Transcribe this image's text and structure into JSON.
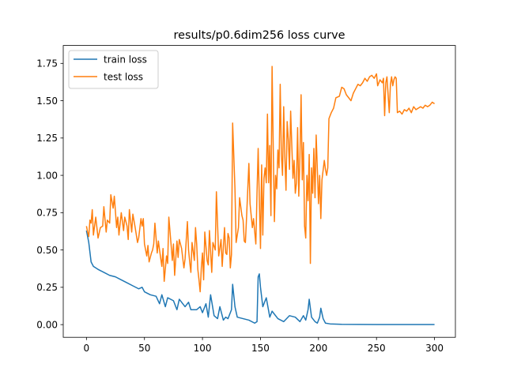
{
  "chart_data": {
    "type": "line",
    "title": "results/p0.6dim256 loss curve",
    "xlabel": "",
    "ylabel": "",
    "xlim": [
      -20,
      318
    ],
    "ylim": [
      -0.085,
      1.87
    ],
    "x_ticks": [
      0,
      50,
      100,
      150,
      200,
      250,
      300
    ],
    "y_ticks": [
      0.0,
      0.25,
      0.5,
      0.75,
      1.0,
      1.25,
      1.5,
      1.75
    ],
    "x_tick_labels": [
      "0",
      "50",
      "100",
      "150",
      "200",
      "250",
      "300"
    ],
    "y_tick_labels": [
      "0.00",
      "0.25",
      "0.50",
      "0.75",
      "1.00",
      "1.25",
      "1.50",
      "1.75"
    ],
    "grid": false,
    "legend": {
      "position": "top-left",
      "entries": [
        "train loss",
        "test loss"
      ]
    },
    "series": [
      {
        "name": "train loss",
        "color": "#1f77b4",
        "points": [
          [
            0,
            0.63
          ],
          [
            2,
            0.55
          ],
          [
            4,
            0.42
          ],
          [
            6,
            0.39
          ],
          [
            10,
            0.37
          ],
          [
            15,
            0.35
          ],
          [
            20,
            0.33
          ],
          [
            25,
            0.32
          ],
          [
            30,
            0.3
          ],
          [
            35,
            0.28
          ],
          [
            40,
            0.26
          ],
          [
            45,
            0.24
          ],
          [
            48,
            0.25
          ],
          [
            50,
            0.22
          ],
          [
            55,
            0.2
          ],
          [
            60,
            0.19
          ],
          [
            63,
            0.14
          ],
          [
            65,
            0.2
          ],
          [
            68,
            0.12
          ],
          [
            70,
            0.18
          ],
          [
            75,
            0.16
          ],
          [
            78,
            0.1
          ],
          [
            80,
            0.17
          ],
          [
            85,
            0.12
          ],
          [
            88,
            0.15
          ],
          [
            90,
            0.1
          ],
          [
            95,
            0.1
          ],
          [
            98,
            0.12
          ],
          [
            100,
            0.08
          ],
          [
            103,
            0.14
          ],
          [
            105,
            0.05
          ],
          [
            107,
            0.2
          ],
          [
            110,
            0.06
          ],
          [
            113,
            0.04
          ],
          [
            115,
            0.12
          ],
          [
            118,
            0.03
          ],
          [
            120,
            0.05
          ],
          [
            122,
            0.04
          ],
          [
            125,
            0.1
          ],
          [
            126,
            0.27
          ],
          [
            128,
            0.12
          ],
          [
            130,
            0.05
          ],
          [
            135,
            0.04
          ],
          [
            140,
            0.03
          ],
          [
            145,
            0.01
          ],
          [
            147,
            0.02
          ],
          [
            148,
            0.32
          ],
          [
            149,
            0.34
          ],
          [
            150,
            0.25
          ],
          [
            152,
            0.12
          ],
          [
            155,
            0.18
          ],
          [
            158,
            0.05
          ],
          [
            160,
            0.09
          ],
          [
            165,
            0.04
          ],
          [
            170,
            0.02
          ],
          [
            175,
            0.06
          ],
          [
            180,
            0.05
          ],
          [
            184,
            0.02
          ],
          [
            187,
            0.06
          ],
          [
            189,
            0.03
          ],
          [
            191,
            0.1
          ],
          [
            192,
            0.17
          ],
          [
            194,
            0.05
          ],
          [
            197,
            0.02
          ],
          [
            199,
            0.01
          ],
          [
            201,
            0.05
          ],
          [
            202,
            0.11
          ],
          [
            204,
            0.04
          ],
          [
            206,
            0.01
          ],
          [
            210,
            0.005
          ],
          [
            220,
            0.002
          ],
          [
            250,
            0.001
          ],
          [
            300,
            0.001
          ]
        ]
      },
      {
        "name": "test loss",
        "color": "#ff7f0e",
        "points": [
          [
            0,
            0.66
          ],
          [
            1,
            0.62
          ],
          [
            2,
            0.59
          ],
          [
            3,
            0.7
          ],
          [
            4,
            0.68
          ],
          [
            5,
            0.77
          ],
          [
            6,
            0.6
          ],
          [
            8,
            0.72
          ],
          [
            10,
            0.58
          ],
          [
            12,
            0.65
          ],
          [
            14,
            0.66
          ],
          [
            15,
            0.79
          ],
          [
            17,
            0.62
          ],
          [
            18,
            0.7
          ],
          [
            20,
            0.68
          ],
          [
            21,
            0.87
          ],
          [
            23,
            0.78
          ],
          [
            24,
            0.86
          ],
          [
            26,
            0.65
          ],
          [
            27,
            0.72
          ],
          [
            28,
            0.6
          ],
          [
            30,
            0.75
          ],
          [
            32,
            0.63
          ],
          [
            33,
            0.72
          ],
          [
            35,
            0.66
          ],
          [
            36,
            0.57
          ],
          [
            37,
            0.77
          ],
          [
            39,
            0.62
          ],
          [
            40,
            0.74
          ],
          [
            42,
            0.65
          ],
          [
            44,
            0.55
          ],
          [
            45,
            0.58
          ],
          [
            47,
            0.71
          ],
          [
            48,
            0.66
          ],
          [
            49,
            0.71
          ],
          [
            50,
            0.54
          ],
          [
            52,
            0.46
          ],
          [
            53,
            0.53
          ],
          [
            54,
            0.42
          ],
          [
            56,
            0.48
          ],
          [
            57,
            0.5
          ],
          [
            58,
            0.54
          ],
          [
            59,
            0.68
          ],
          [
            61,
            0.48
          ],
          [
            62,
            0.56
          ],
          [
            63,
            0.5
          ],
          [
            65,
            0.39
          ],
          [
            66,
            0.51
          ],
          [
            67,
            0.29
          ],
          [
            69,
            0.46
          ],
          [
            70,
            0.41
          ],
          [
            71,
            0.72
          ],
          [
            73,
            0.53
          ],
          [
            74,
            0.43
          ],
          [
            75,
            0.54
          ],
          [
            76,
            0.33
          ],
          [
            78,
            0.56
          ],
          [
            79,
            0.45
          ],
          [
            80,
            0.57
          ],
          [
            82,
            0.51
          ],
          [
            84,
            0.38
          ],
          [
            85,
            0.44
          ],
          [
            87,
            0.69
          ],
          [
            88,
            0.5
          ],
          [
            89,
            0.42
          ],
          [
            90,
            0.35
          ],
          [
            91,
            0.55
          ],
          [
            93,
            0.43
          ],
          [
            94,
            0.65
          ],
          [
            95,
            0.54
          ],
          [
            96,
            0.37
          ],
          [
            97,
            0.3
          ],
          [
            98,
            0.22
          ],
          [
            99,
            0.38
          ],
          [
            100,
            0.48
          ],
          [
            101,
            0.3
          ],
          [
            102,
            0.62
          ],
          [
            104,
            0.43
          ],
          [
            105,
            0.4
          ],
          [
            106,
            0.63
          ],
          [
            108,
            0.35
          ],
          [
            109,
            0.55
          ],
          [
            111,
            0.5
          ],
          [
            112,
            0.89
          ],
          [
            114,
            0.46
          ],
          [
            116,
            0.57
          ],
          [
            117,
            0.39
          ],
          [
            119,
            0.65
          ],
          [
            120,
            0.48
          ],
          [
            121,
            0.47
          ],
          [
            122,
            0.61
          ],
          [
            123,
            0.58
          ],
          [
            124,
            0.38
          ],
          [
            125,
            0.47
          ],
          [
            126,
            1.35
          ],
          [
            128,
            0.91
          ],
          [
            129,
            0.55
          ],
          [
            131,
            0.65
          ],
          [
            132,
            0.85
          ],
          [
            134,
            0.73
          ],
          [
            135,
            0.7
          ],
          [
            136,
            0.56
          ],
          [
            137,
            0.55
          ],
          [
            138,
            0.72
          ],
          [
            140,
            1.08
          ],
          [
            141,
            0.81
          ],
          [
            143,
            0.65
          ],
          [
            144,
            0.71
          ],
          [
            146,
            0.54
          ],
          [
            147,
            0.88
          ],
          [
            148,
            1.18
          ],
          [
            149,
            0.84
          ],
          [
            150,
            0.51
          ],
          [
            151,
            1.07
          ],
          [
            152,
            0.6
          ],
          [
            153,
            0.98
          ],
          [
            154,
            1.05
          ],
          [
            155,
            0.95
          ],
          [
            156,
            1.41
          ],
          [
            157,
            0.95
          ],
          [
            158,
            1.2
          ],
          [
            159,
            0.73
          ],
          [
            160,
            1.73
          ],
          [
            161,
            1.18
          ],
          [
            162,
            0.69
          ],
          [
            163,
            1.0
          ],
          [
            164,
            0.91
          ],
          [
            165,
            1.17
          ],
          [
            166,
            1.05
          ],
          [
            167,
            1.61
          ],
          [
            168,
            1.14
          ],
          [
            169,
            1.0
          ],
          [
            170,
            1.46
          ],
          [
            171,
            1.12
          ],
          [
            172,
            0.9
          ],
          [
            173,
            1.36
          ],
          [
            174,
            1.24
          ],
          [
            175,
            1.04
          ],
          [
            176,
            1.43
          ],
          [
            177,
            1.2
          ],
          [
            178,
            0.98
          ],
          [
            179,
            1.1
          ],
          [
            180,
            0.88
          ],
          [
            181,
            0.95
          ],
          [
            182,
            1.32
          ],
          [
            183,
            0.86
          ],
          [
            184,
            1.12
          ],
          [
            185,
            1.54
          ],
          [
            186,
            0.97
          ],
          [
            187,
            1.22
          ],
          [
            188,
            0.66
          ],
          [
            189,
            0.58
          ],
          [
            190,
            1.0
          ],
          [
            191,
            0.83
          ],
          [
            192,
            1.14
          ],
          [
            193,
            0.41
          ],
          [
            194,
            1.05
          ],
          [
            195,
            0.88
          ],
          [
            196,
            1.18
          ],
          [
            197,
            0.85
          ],
          [
            198,
            1.27
          ],
          [
            199,
            1.04
          ],
          [
            200,
            0.81
          ],
          [
            201,
            1.0
          ],
          [
            202,
            0.71
          ],
          [
            203,
            0.97
          ],
          [
            205,
            1.1
          ],
          [
            206,
            1.04
          ],
          [
            207,
            1.0
          ],
          [
            208,
            1.05
          ],
          [
            209,
            1.38
          ],
          [
            211,
            1.42
          ],
          [
            213,
            1.45
          ],
          [
            215,
            1.52
          ],
          [
            218,
            1.53
          ],
          [
            220,
            1.59
          ],
          [
            222,
            1.58
          ],
          [
            224,
            1.54
          ],
          [
            226,
            1.52
          ],
          [
            228,
            1.5
          ],
          [
            230,
            1.55
          ],
          [
            232,
            1.58
          ],
          [
            234,
            1.61
          ],
          [
            236,
            1.6
          ],
          [
            238,
            1.62
          ],
          [
            240,
            1.65
          ],
          [
            242,
            1.63
          ],
          [
            244,
            1.66
          ],
          [
            246,
            1.67
          ],
          [
            248,
            1.65
          ],
          [
            250,
            1.68
          ],
          [
            251,
            1.6
          ],
          [
            253,
            1.64
          ],
          [
            255,
            1.62
          ],
          [
            256,
            1.65
          ],
          [
            257,
            1.4
          ],
          [
            258,
            1.62
          ],
          [
            259,
            1.66
          ],
          [
            261,
            1.42
          ],
          [
            262,
            1.61
          ],
          [
            263,
            1.66
          ],
          [
            264,
            1.6
          ],
          [
            265,
            1.64
          ],
          [
            266,
            1.66
          ],
          [
            267,
            1.65
          ],
          [
            268,
            1.42
          ],
          [
            270,
            1.43
          ],
          [
            272,
            1.41
          ],
          [
            274,
            1.44
          ],
          [
            276,
            1.43
          ],
          [
            278,
            1.45
          ],
          [
            280,
            1.42
          ],
          [
            282,
            1.46
          ],
          [
            284,
            1.44
          ],
          [
            286,
            1.45
          ],
          [
            288,
            1.46
          ],
          [
            290,
            1.45
          ],
          [
            292,
            1.47
          ],
          [
            294,
            1.46
          ],
          [
            296,
            1.47
          ],
          [
            298,
            1.49
          ],
          [
            300,
            1.48
          ]
        ]
      }
    ]
  }
}
